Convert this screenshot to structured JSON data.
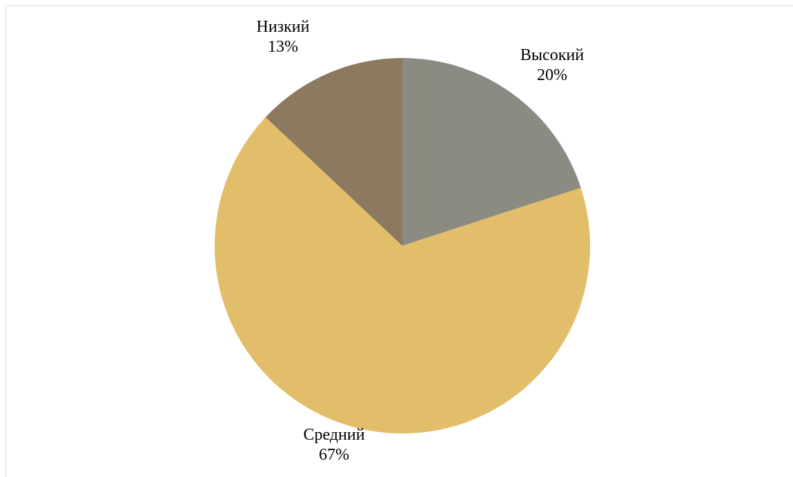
{
  "chart_data": {
    "type": "pie",
    "title": "",
    "slices": [
      {
        "category": "Высокий",
        "value": 20,
        "label": "20%",
        "color": "#8b8b84"
      },
      {
        "category": "Средний",
        "value": 67,
        "label": "67%",
        "color": "#e3be6a"
      },
      {
        "category": "Низкий",
        "value": 13,
        "label": "13%",
        "color": "#8b7a5f"
      }
    ],
    "start_angle_deg": 0,
    "direction": "clockwise",
    "legend": "none",
    "data_labels": "category-and-percent"
  }
}
